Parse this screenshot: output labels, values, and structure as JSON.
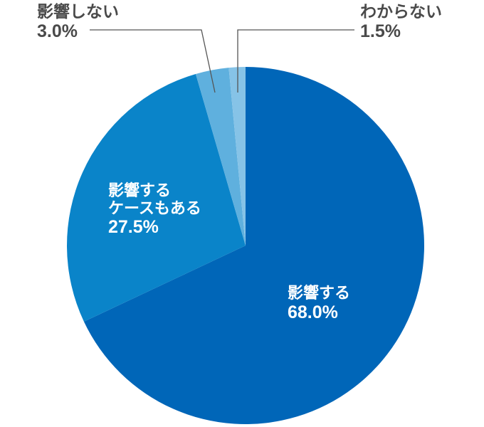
{
  "chart_data": {
    "type": "pie",
    "title": "",
    "start_angle_deg": 0,
    "direction": "clockwise",
    "center": [
      345,
      345
    ],
    "radius": 251,
    "slices": [
      {
        "label": "影響する",
        "value": 68.0,
        "display": "68.0%",
        "color": "#0066b8"
      },
      {
        "label": "影響するケースもある",
        "value": 27.5,
        "display": "27.5%",
        "color": "#0a84c9"
      },
      {
        "label": "影響しない",
        "value": 3.0,
        "display": "3.0%",
        "color": "#5fb0de"
      },
      {
        "label": "わからない",
        "value": 1.5,
        "display": "1.5%",
        "color": "#86c3e7"
      }
    ],
    "labels": {
      "s0": {
        "line1": "影響する",
        "pct": "68.0%"
      },
      "s1": {
        "line1": "影響する",
        "line2": "ケースもある",
        "pct": "27.5%"
      },
      "s2": {
        "line1": "影響しない",
        "pct": "3.0%"
      },
      "s3": {
        "line1": "わからない",
        "pct": "1.5%"
      }
    },
    "leader_line_color": "#555555"
  }
}
